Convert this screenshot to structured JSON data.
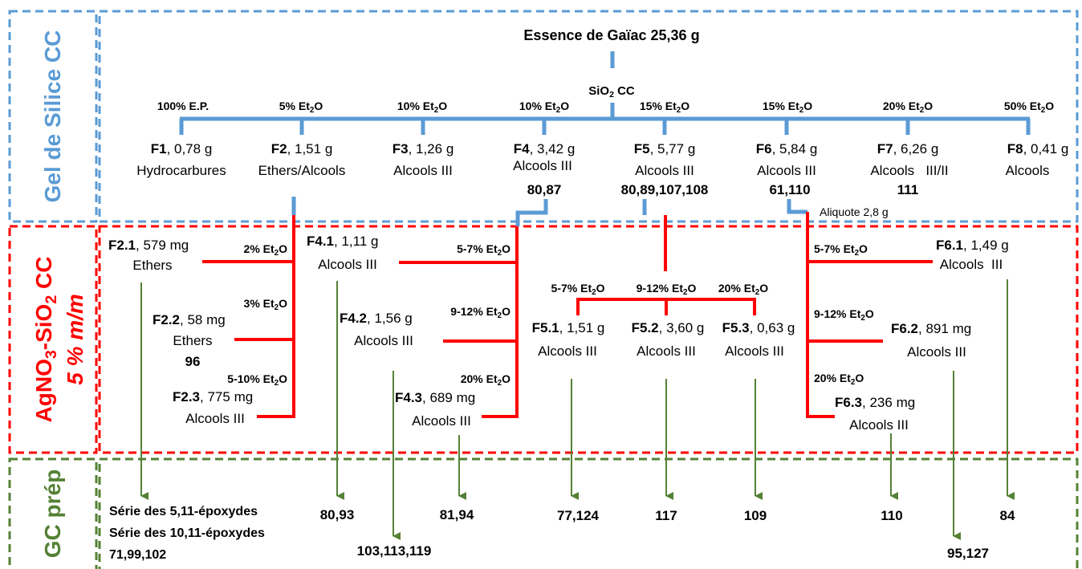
{
  "colors": {
    "blue": "#5b9bd5",
    "red": "#ff0000",
    "green": "#548235"
  },
  "sections": {
    "silica": "Gel de Silice CC",
    "agno3_top": "AgNO3-SiO2 CC",
    "agno3_bottom": "5 % m/m",
    "gc": "GC prép"
  },
  "top": {
    "title": "Essence de Gaïac 25,36 g",
    "sio2": "SiO2 CC",
    "aliquote": "Aliquote 2,8 g"
  },
  "eluents": [
    "100% E.P.",
    "5% Et2O",
    "10% Et2O",
    "10% Et2O",
    "15% Et2O",
    "15% Et2O",
    "20% Et2O",
    "50% Et2O"
  ],
  "fractions": [
    {
      "id": "F1",
      "mass": ", 0,78 g",
      "class": "Hydrocarbures",
      "compounds": ""
    },
    {
      "id": "F2",
      "mass": ", 1,51 g",
      "class": "Ethers/Alcools",
      "compounds": ""
    },
    {
      "id": "F3",
      "mass": ", 1,26 g",
      "class": "Alcools III",
      "compounds": ""
    },
    {
      "id": "F4",
      "mass": ", 3,42 g",
      "class": "Alcools  III",
      "compounds": "80,87"
    },
    {
      "id": "F5",
      "mass": ", 5,77 g",
      "class": "Alcools III",
      "compounds": "80,89,107,108"
    },
    {
      "id": "F6",
      "mass": ", 5,84 g",
      "class": "Alcools III",
      "compounds": "61,110"
    },
    {
      "id": "F7",
      "mass": ", 6,26 g",
      "class": "Alcools   III/II",
      "compounds": "111"
    },
    {
      "id": "F8",
      "mass": ", 0,41 g",
      "class": "Alcools",
      "compounds": ""
    }
  ],
  "sub_eluents": {
    "f2_1": "2% Et2O",
    "f2_2": "3% Et2O",
    "f2_3": "5-10% Et2O",
    "f4_1": "5-7% Et2O",
    "f4_2": "9-12% Et2O",
    "f4_3": "20% Et2O",
    "f5_1": "5-7% Et2O",
    "f5_2": "9-12% Et2O",
    "f5_3": "20% Et2O",
    "f6_1": "5-7% Et2O",
    "f6_2": "9-12% Et2O",
    "f6_3": "20% Et2O"
  },
  "subfractions": {
    "f2_1": {
      "id": "F2.1",
      "mass": ", 579 mg",
      "class": "Ethers"
    },
    "f2_2": {
      "id": "F2.2",
      "mass": ", 58 mg",
      "class": "Ethers",
      "compounds": "96"
    },
    "f2_3": {
      "id": "F2.3",
      "mass": ", 775 mg",
      "class": "Alcools III"
    },
    "f4_1": {
      "id": "F4.1",
      "mass": ", 1,11 g",
      "class": "Alcools III"
    },
    "f4_2": {
      "id": "F4.2",
      "mass": ", 1,56 g",
      "class": "Alcools III"
    },
    "f4_3": {
      "id": "F4.3",
      "mass": ", 689 mg",
      "class": "Alcools III"
    },
    "f5_1": {
      "id": "F5.1",
      "mass": ", 1,51 g",
      "class": "Alcools III"
    },
    "f5_2": {
      "id": "F5.2",
      "mass": ", 3,60 g",
      "class": "Alcools III"
    },
    "f5_3": {
      "id": "F5.3",
      "mass": ", 0,63 g",
      "class": "Alcools III"
    },
    "f6_1": {
      "id": "F6.1",
      "mass": ", 1,49 g",
      "class": "Alcools  III"
    },
    "f6_2": {
      "id": "F6.2",
      "mass": ", 891 mg",
      "class": "Alcools III"
    },
    "f6_3": {
      "id": "F6.3",
      "mass": ", 236 mg",
      "class": "Alcools III"
    }
  },
  "gc_results": {
    "epoxy1": "Série des 5,11-époxydes",
    "epoxy2": "Série des 10,11-époxydes",
    "epoxy_compounds": "71,99,102",
    "r1": "80,93",
    "r2": "103,113,119",
    "r3": "81,94",
    "r4": "77,124",
    "r5": "117",
    "r6": "109",
    "r7": "110",
    "r8": "95,127",
    "r9": "84"
  }
}
